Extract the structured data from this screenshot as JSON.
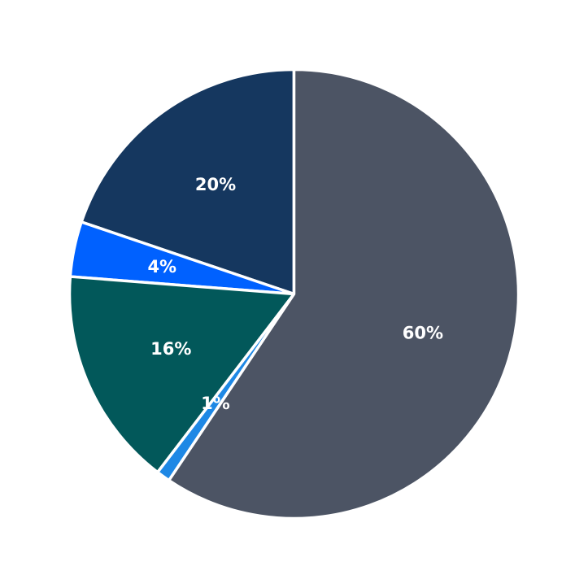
{
  "chart_data": {
    "type": "pie",
    "title": "",
    "start_angle_deg": 90,
    "direction": "counterclockwise",
    "legend": "none",
    "slices": [
      {
        "label": "20%",
        "value": 20,
        "color": "#15375f"
      },
      {
        "label": "4%",
        "value": 4,
        "color": "#0061ff"
      },
      {
        "label": "16%",
        "value": 16,
        "color": "#02585a"
      },
      {
        "label": "1%",
        "value": 1,
        "color": "#1e88e5"
      },
      {
        "label": "60%",
        "value": 60,
        "color": "#4c5464"
      }
    ]
  }
}
